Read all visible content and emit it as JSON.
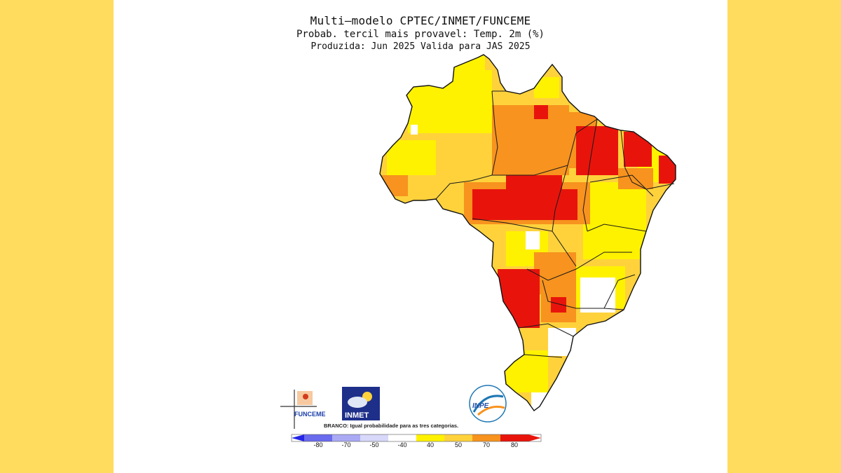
{
  "title": "Multi–modelo CPTEC/INMET/FUNCEME",
  "subtitle": "Probab. tercil mais provavel: Temp. 2m (%)",
  "produced_line": "Produzida: Jun 2025   Valida para JAS 2025",
  "logos": {
    "funceme": "FUNCEME",
    "inmet": "INMET",
    "inpe": "INPE"
  },
  "legend": {
    "note": "BRANCO: Igual probabilidade para as tres categorias.",
    "ticks": [
      "-80",
      "-70",
      "-50",
      "-40",
      "40",
      "50",
      "70",
      "80"
    ],
    "colors": {
      "neg80": "#2525e6",
      "neg70": "#6a6aee",
      "neg50": "#a9a9f4",
      "neg40": "#d8d8fa",
      "neutral": "#ffffff",
      "p40": "#fff200",
      "p50": "#ffd23c",
      "p70": "#f7931e",
      "p80": "#e8140c"
    }
  }
}
